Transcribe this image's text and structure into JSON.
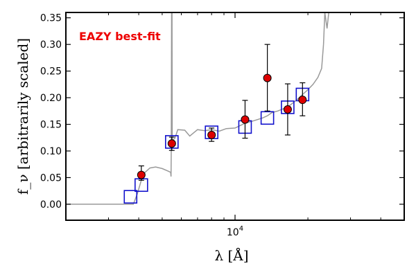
{
  "chart_data": {
    "type": "scatter",
    "title": "",
    "annotation": "EAZY best-fit",
    "ylabel": "f_ν [arbitrarily scaled]",
    "xlabel": "λ [Å]",
    "x_scale": "log",
    "xlim": [
      2000,
      50000
    ],
    "ylim": [
      -0.03,
      0.36
    ],
    "yticks": [
      0.0,
      0.05,
      0.1,
      0.15,
      0.2,
      0.25,
      0.3,
      0.35
    ],
    "ytick_labels": [
      "0.00",
      "0.05",
      "0.10",
      "0.15",
      "0.20",
      "0.25",
      "0.30",
      "0.35"
    ],
    "xtick_major": [
      {
        "value": 10000,
        "label": "10^4"
      }
    ],
    "grid": false,
    "colors": {
      "observed": "#dd0000",
      "model_points": "#1111cc",
      "sed": "#999999",
      "annotation": "#ee0000"
    },
    "series": [
      {
        "kind": "observed",
        "points": [
          {
            "x": 4100,
            "y": 0.055,
            "yerr_lo": 0.01,
            "yerr_hi": 0.017
          },
          {
            "x": 5480,
            "y": 0.114,
            "yerr_lo": 0.013,
            "yerr_hi": 0.012
          },
          {
            "x": 8000,
            "y": 0.13,
            "yerr_lo": 0.012,
            "yerr_hi": 0.013
          },
          {
            "x": 11000,
            "y": 0.159,
            "yerr_lo": 0.035,
            "yerr_hi": 0.036
          },
          {
            "x": 13600,
            "y": 0.237,
            "yerr_lo": 0.062,
            "yerr_hi": 0.063
          },
          {
            "x": 16500,
            "y": 0.178,
            "yerr_lo": 0.048,
            "yerr_hi": 0.048
          },
          {
            "x": 19000,
            "y": 0.196,
            "yerr_lo": 0.03,
            "yerr_hi": 0.032
          }
        ]
      },
      {
        "kind": "model_points",
        "points": [
          {
            "x": 3700,
            "y": 0.014
          },
          {
            "x": 4100,
            "y": 0.036
          },
          {
            "x": 5480,
            "y": 0.117
          },
          {
            "x": 8000,
            "y": 0.135
          },
          {
            "x": 11000,
            "y": 0.145
          },
          {
            "x": 13600,
            "y": 0.162
          },
          {
            "x": 16500,
            "y": 0.182
          },
          {
            "x": 19000,
            "y": 0.206
          }
        ]
      },
      {
        "kind": "sed",
        "points": [
          {
            "x": 2000,
            "y": 0.0
          },
          {
            "x": 3800,
            "y": 0.0
          },
          {
            "x": 3950,
            "y": 0.02
          },
          {
            "x": 4100,
            "y": 0.045
          },
          {
            "x": 4250,
            "y": 0.06
          },
          {
            "x": 4450,
            "y": 0.068
          },
          {
            "x": 4700,
            "y": 0.07
          },
          {
            "x": 5000,
            "y": 0.067
          },
          {
            "x": 5300,
            "y": 0.062
          },
          {
            "x": 5420,
            "y": 0.06
          },
          {
            "x": 5440,
            "y": 0.052
          },
          {
            "x": 5450,
            "y": 0.1
          },
          {
            "x": 5470,
            "y": 0.36
          },
          {
            "x": 5490,
            "y": 0.36
          },
          {
            "x": 5500,
            "y": 0.12
          },
          {
            "x": 5650,
            "y": 0.124
          },
          {
            "x": 5800,
            "y": 0.14
          },
          {
            "x": 6200,
            "y": 0.139
          },
          {
            "x": 6500,
            "y": 0.128
          },
          {
            "x": 7000,
            "y": 0.14
          },
          {
            "x": 7500,
            "y": 0.138
          },
          {
            "x": 8000,
            "y": 0.14
          },
          {
            "x": 8600,
            "y": 0.137
          },
          {
            "x": 9200,
            "y": 0.142
          },
          {
            "x": 10000,
            "y": 0.143
          },
          {
            "x": 11000,
            "y": 0.152
          },
          {
            "x": 12000,
            "y": 0.157
          },
          {
            "x": 13000,
            "y": 0.162
          },
          {
            "x": 13600,
            "y": 0.166
          },
          {
            "x": 14200,
            "y": 0.172
          },
          {
            "x": 15000,
            "y": 0.175
          },
          {
            "x": 16000,
            "y": 0.18
          },
          {
            "x": 17000,
            "y": 0.187
          },
          {
            "x": 18000,
            "y": 0.196
          },
          {
            "x": 19000,
            "y": 0.206
          },
          {
            "x": 20000,
            "y": 0.215
          },
          {
            "x": 21000,
            "y": 0.225
          },
          {
            "x": 22000,
            "y": 0.238
          },
          {
            "x": 22800,
            "y": 0.255
          },
          {
            "x": 23200,
            "y": 0.3
          },
          {
            "x": 23500,
            "y": 0.36
          },
          {
            "x": 24000,
            "y": 0.33
          },
          {
            "x": 24400,
            "y": 0.36
          }
        ]
      }
    ]
  }
}
